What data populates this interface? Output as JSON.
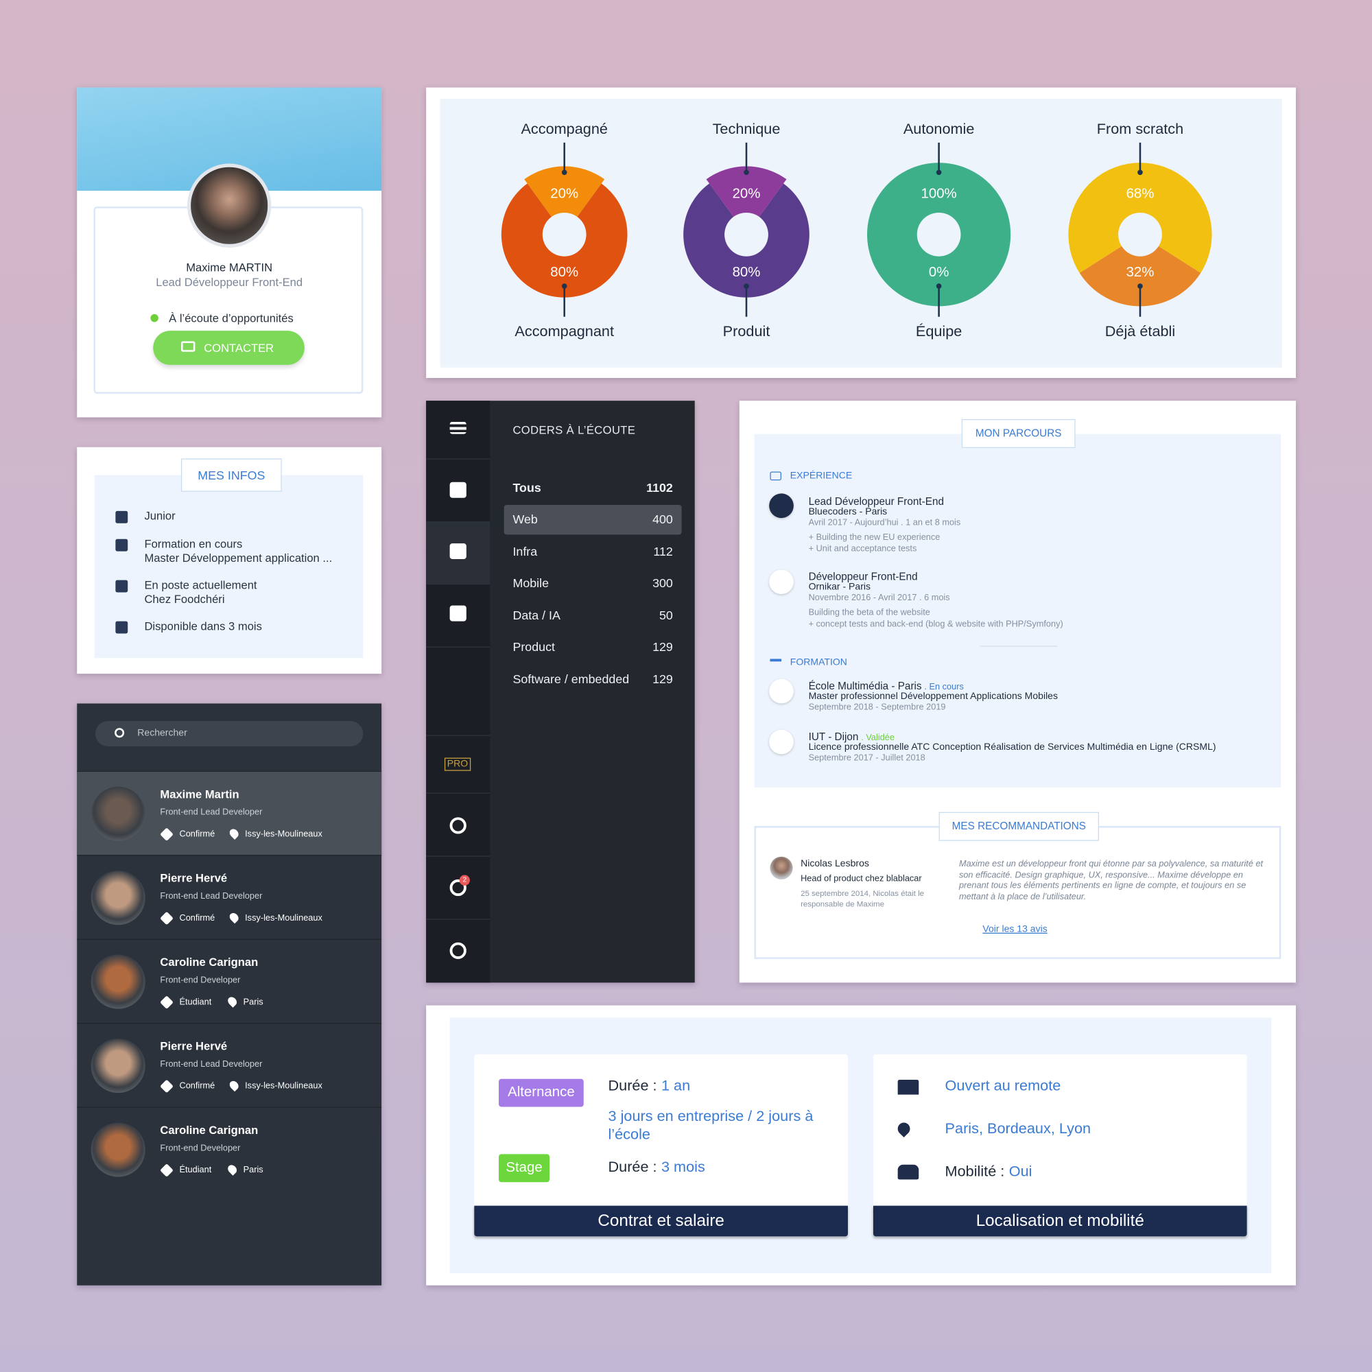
{
  "profile": {
    "name": "Maxime MARTIN",
    "role": "Lead Développeur Front-End",
    "status": "À l’écoute d’opportunités",
    "button": "CONTACTER"
  },
  "infos": {
    "title": "MES INFOS",
    "items": [
      [
        "Junior"
      ],
      [
        "Formation en cours",
        "Master Développement application ..."
      ],
      [
        "En poste actuellement",
        "Chez Foodchéri"
      ],
      [
        "Disponible dans 3 mois"
      ]
    ]
  },
  "search": {
    "placeholder": "Rechercher",
    "people": [
      {
        "name": "Maxime Martin",
        "role": "Front-end Lead Developer",
        "level": "Confirmé",
        "location": "Issy-les-Moulineaux"
      },
      {
        "name": "Pierre Hervé",
        "role": "Front-end Lead Developer",
        "level": "Confirmé",
        "location": "Issy-les-Moulineaux"
      },
      {
        "name": "Caroline Carignan",
        "role": "Front-end Developer",
        "level": "Étudiant",
        "location": "Paris"
      },
      {
        "name": "Pierre Hervé",
        "role": "Front-end Lead Developer",
        "level": "Confirmé",
        "location": "Issy-les-Moulineaux"
      },
      {
        "name": "Caroline Carignan",
        "role": "Front-end Developer",
        "level": "Étudiant",
        "location": "Paris"
      }
    ]
  },
  "skills": {
    "type": "donut",
    "items": [
      {
        "top": "Accompagné",
        "bottom": "Accompagnant",
        "values": [
          20,
          80
        ],
        "value_labels": [
          "20%",
          "80%"
        ],
        "colors": [
          "#f28c0a",
          "#e0520f"
        ]
      },
      {
        "top": "Technique",
        "bottom": "Produit",
        "values": [
          20,
          80
        ],
        "value_labels": [
          "20%",
          "80%"
        ],
        "colors": [
          "#8e3c9c",
          "#5a3c8c"
        ]
      },
      {
        "top": "Autonomie",
        "bottom": "Équipe",
        "values": [
          100,
          0
        ],
        "value_labels": [
          "100%",
          "0%"
        ],
        "colors": [
          "#3db08a",
          "#3a8aa2"
        ]
      },
      {
        "top": "From scratch",
        "bottom": "Déjà établi",
        "values": [
          68,
          32
        ],
        "value_labels": [
          "68%",
          "32%"
        ],
        "colors": [
          "#f2c010",
          "#e8862a"
        ]
      }
    ]
  },
  "coders": {
    "title": "CODERS À L’ÉCOUTE",
    "badge": "PRO",
    "notifications": 2,
    "rows": [
      {
        "label": "Tous",
        "count": 1102
      },
      {
        "label": "Web",
        "count": 400
      },
      {
        "label": "Infra",
        "count": 112
      },
      {
        "label": "Mobile",
        "count": 300
      },
      {
        "label": "Data / IA",
        "count": 50
      },
      {
        "label": "Product",
        "count": 129
      },
      {
        "label": "Software / embedded",
        "count": 129
      }
    ]
  },
  "parcours": {
    "title": "MON PARCOURS",
    "experience": {
      "heading": "EXPÉRIENCE",
      "items": [
        {
          "title": "Lead Développeur Front-End",
          "company": "Bluecoders - Paris",
          "dates": "Avril 2017 - Aujourd’hui . 1 an et 8 mois",
          "details": [
            "+ Building the new EU experience",
            "+ Unit and acceptance tests"
          ]
        },
        {
          "title": "Développeur Front-End",
          "company": "Ornikar - Paris",
          "dates": "Novembre 2016 - Avril 2017 . 6 mois",
          "details": [
            "Building the beta of the website",
            "+ concept tests and back-end (blog & website with PHP/Symfony)"
          ]
        }
      ]
    },
    "formation": {
      "heading": "FORMATION",
      "items": [
        {
          "school": "École Multimédia - Paris",
          "status": ". En cours",
          "degree": "Master professionnel Développement Applications Mobiles",
          "dates": "Septembre 2018 - Septembre 2019"
        },
        {
          "school": "IUT - Dijon",
          "status": ". Validée",
          "degree": "Licence professionnelle ATC Conception Réalisation de Services Multimédia en Ligne (CRSML)",
          "dates": "Septembre 2017 - Juillet 2018"
        }
      ]
    }
  },
  "recommandations": {
    "title": "MES RECOMMANDATIONS",
    "author": "Nicolas Lesbros",
    "author_role": "Head of product chez blablacar",
    "context": "25 septembre 2014, Nicolas était le responsable de Maxime",
    "quote": "Maxime est un développeur front qui étonne par sa polyvalence, sa maturité et son efficacité. Design graphique, UX, responsive... Maxime développe en prenant tous les éléments pertinents en ligne de compte, et toujours en se mettant à la place de l’utilisateur.",
    "link": "Voir les 13 avis"
  },
  "contract": {
    "title": "Contrat et salaire",
    "items": [
      {
        "tag": "Alternance",
        "label": "Durée :",
        "value": "1 an",
        "extra": "3 jours en entreprise / 2 jours à l’école"
      },
      {
        "tag": "Stage",
        "label": "Durée :",
        "value": "3 mois"
      }
    ]
  },
  "location": {
    "title": "Localisation et mobilité",
    "remote": "Ouvert au remote",
    "cities": "Paris, Bordeaux, Lyon",
    "mobility_label": "Mobilité :",
    "mobility_value": "Oui"
  }
}
